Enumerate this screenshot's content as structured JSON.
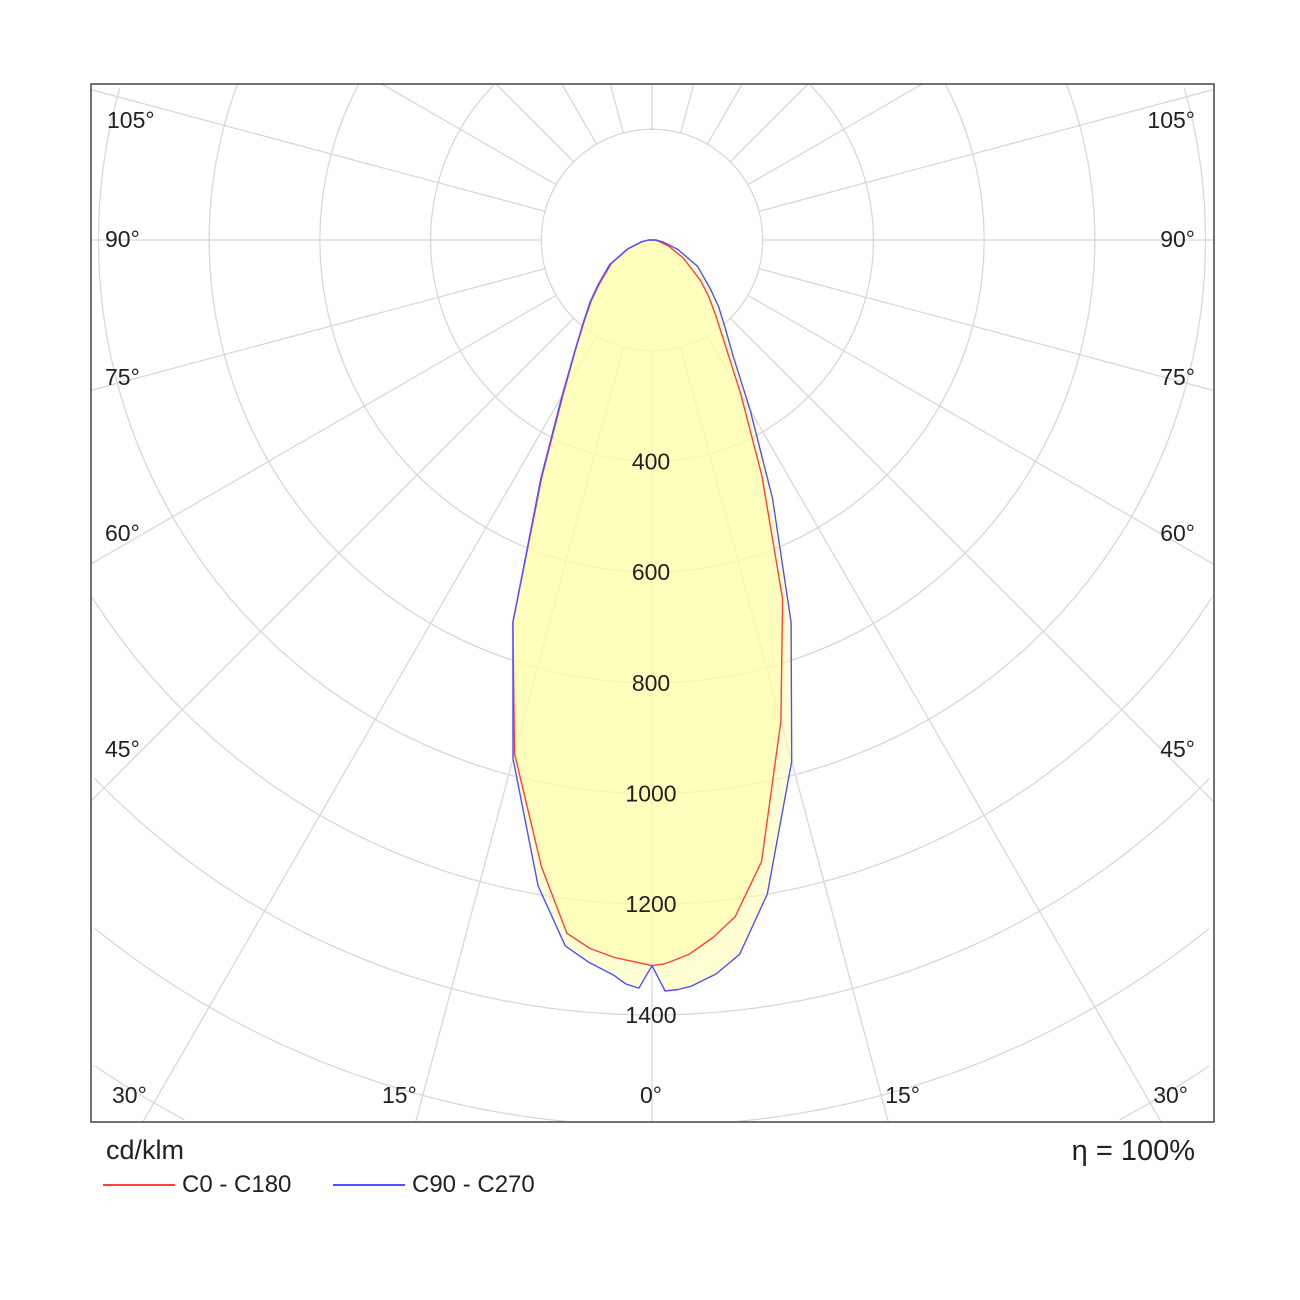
{
  "chart_data": {
    "type": "polar",
    "unit_label": "cd/klm",
    "efficiency_label": "η = 100%",
    "radial_ticks": [
      400,
      600,
      800,
      1000,
      1200,
      1400
    ],
    "radial_grid": [
      200,
      400,
      600,
      800,
      1000,
      1200,
      1400,
      1600,
      1800,
      2000
    ],
    "angle_grid_step_deg": 15,
    "angle_labels": {
      "left": [
        "105°",
        "90°",
        "75°",
        "60°",
        "45°",
        "30°",
        "15°"
      ],
      "center": "0°",
      "right": [
        "15°",
        "30°",
        "45°",
        "60°",
        "75°",
        "90°",
        "105°"
      ]
    },
    "fill_color": "#ffffa8",
    "angles_deg": [
      0,
      1,
      2,
      3,
      5,
      7,
      10,
      15,
      20,
      25,
      30,
      35,
      40,
      45,
      50,
      60,
      70,
      80,
      90
    ],
    "series": [
      {
        "name": "C0 - C180",
        "color": "#ff4040",
        "right_values": [
          1311,
          1308,
          1300,
          1292,
          1265,
          1232,
          1140,
          900,
          690,
          470,
          320,
          230,
          180,
          145,
          115,
          65,
          32,
          12,
          4
        ],
        "left_values": [
          1311,
          1306,
          1302,
          1298,
          1285,
          1262,
          1150,
          960,
          735,
          470,
          320,
          240,
          190,
          155,
          125,
          85,
          45,
          18,
          6
        ]
      },
      {
        "name": "C90 - C270",
        "color": "#5050ff",
        "right_values": [
          1311,
          1357,
          1355,
          1350,
          1331,
          1300,
          1200,
          975,
          735,
          515,
          355,
          255,
          205,
          170,
          138,
          95,
          50,
          20,
          8
        ],
        "left_values": [
          1311,
          1352,
          1345,
          1330,
          1310,
          1285,
          1185,
          970,
          735,
          475,
          325,
          242,
          192,
          158,
          128,
          88,
          47,
          19,
          7
        ]
      }
    ]
  }
}
